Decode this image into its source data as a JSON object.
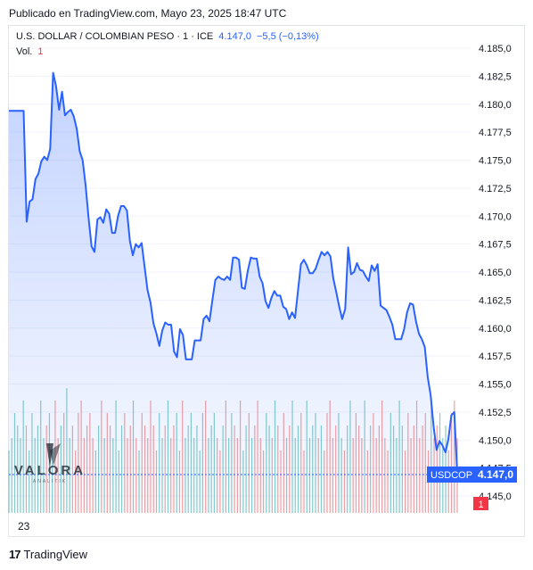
{
  "header": {
    "published": "Publicado en TradingView.com, Mayo 23, 2025 18:47 UTC"
  },
  "legend": {
    "symbol": "U.S. DOLLAR / COLOMBIAN PESO · 1 · ICE",
    "price": "4.147,0",
    "change": "−5,5 (−0,13%)",
    "vol_label": "Vol.",
    "vol_value": "1"
  },
  "price_tag": {
    "ticker": "USDCOP",
    "price": "4.147,0"
  },
  "volume_tag": "1",
  "watermark": {
    "brand": "VALORA",
    "sub": "ANALITIK"
  },
  "footer": {
    "brand": "TradingView"
  },
  "colors": {
    "line": "#2962ff",
    "fill": "#2962ff",
    "vol_up": "#26a69a",
    "vol_down": "#ef5350",
    "tag": "#2962ff",
    "vol_tag": "#f23645"
  },
  "chart_data": {
    "type": "area",
    "xlabel": "",
    "ylabel": "",
    "x_tick_labels": [
      "23"
    ],
    "y_tick_labels": [
      "4.185,0",
      "4.182,5",
      "4.180,0",
      "4.177,5",
      "4.175,0",
      "4.172,5",
      "4.170,0",
      "4.167,5",
      "4.165,0",
      "4.162,5",
      "4.160,0",
      "4.157,5",
      "4.155,0",
      "4.152,5",
      "4.150,0",
      "4.147,5",
      "4.145,0"
    ],
    "ylim": [
      4145.0,
      4185.0
    ],
    "grid": true,
    "series": [
      {
        "values": [
          4179.4,
          4179.4,
          4179.4,
          4179.4,
          4179.4,
          4179.4,
          4169.5,
          4171.3,
          4171.5,
          4173.3,
          4173.8,
          4174.9,
          4175.3,
          4175.0,
          4176.0,
          4182.8,
          4181.6,
          4179.5,
          4181.1,
          4179.0,
          4179.3,
          4179.5,
          4178.9,
          4177.8,
          4175.8,
          4175.0,
          4172.8,
          4169.9,
          4167.3,
          4166.8,
          4169.7,
          4169.9,
          4169.4,
          4170.6,
          4170.2,
          4168.5,
          4168.5,
          4170.0,
          4170.9,
          4170.9,
          4170.5,
          4167.8,
          4166.5,
          4167.5,
          4167.2,
          4167.6,
          4165.5,
          4163.4,
          4162.3,
          4160.4,
          4159.5,
          4158.4,
          4159.8,
          4160.5,
          4160.3,
          4160.3,
          4157.9,
          4157.4,
          4159.9,
          4159.4,
          4157.2,
          4157.2,
          4157.2,
          4158.9,
          4158.9,
          4158.9,
          4160.8,
          4161.1,
          4160.6,
          4162.5,
          4164.3,
          4164.6,
          4164.4,
          4164.3,
          4164.6,
          4164.3,
          4166.3,
          4166.3,
          4166.1,
          4163.6,
          4163.5,
          4165.1,
          4166.3,
          4166.2,
          4166.2,
          4164.6,
          4164.0,
          4162.4,
          4161.8,
          4162.7,
          4163.3,
          4162.9,
          4162.9,
          4161.9,
          4161.7,
          4160.8,
          4161.4,
          4160.9,
          4163.3,
          4165.7,
          4166.1,
          4165.6,
          4164.9,
          4164.9,
          4165.3,
          4166.1,
          4166.8,
          4166.5,
          4166.8,
          4166.4,
          4164.4,
          4163.2,
          4161.9,
          4160.8,
          4161.7,
          4167.2,
          4164.8,
          4165.0,
          4165.8,
          4165.2,
          4165.1,
          4164.6,
          4164.2,
          4165.6,
          4165.1,
          4165.7,
          4162.0,
          4161.8,
          4161.6,
          4161.0,
          4160.3,
          4159.0,
          4159.0,
          4159.0,
          4159.9,
          4161.4,
          4162.2,
          4162.1,
          4160.6,
          4159.5,
          4159.0,
          4158.3,
          4155.6,
          4154.0,
          4151.2,
          4149.1,
          4149.9,
          4149.5,
          4148.9,
          4150.1,
          4152.2,
          4152.5,
          4147.0
        ]
      }
    ],
    "volume": {
      "values": [
        0.5,
        0.6,
        0.8,
        0.7,
        0.6,
        0.9,
        0.7,
        0.5,
        0.8,
        0.6,
        0.7,
        0.9,
        0.6,
        0.7,
        0.8,
        0.5,
        0.9,
        0.6,
        0.7,
        0.8,
        1.0,
        0.6,
        0.7,
        0.5,
        0.8,
        0.9,
        0.6,
        0.7,
        0.8,
        0.6,
        0.5,
        0.7,
        0.9,
        0.6,
        0.8,
        0.7,
        0.6,
        0.9,
        0.5,
        0.7,
        0.8,
        0.6,
        0.7,
        0.9,
        0.6,
        0.5,
        0.8,
        0.7,
        0.6,
        0.9,
        0.7,
        0.5,
        0.8,
        0.6,
        0.7,
        0.9,
        0.6,
        0.7,
        0.8,
        0.5,
        0.9,
        0.6,
        0.7,
        0.8,
        0.6,
        0.7,
        0.5,
        0.8,
        0.9,
        0.6,
        0.7,
        0.8,
        0.6,
        0.5,
        0.7,
        0.9,
        0.6,
        0.8,
        0.7,
        0.6,
        0.9,
        0.5,
        0.7,
        0.8,
        0.6,
        0.7,
        0.9,
        0.6,
        0.5,
        0.8,
        0.7,
        0.6,
        0.9,
        0.7,
        0.5,
        0.8,
        0.6,
        0.7,
        0.9,
        0.6,
        0.7,
        0.8,
        0.5,
        0.9,
        0.6,
        0.7,
        0.8,
        0.6,
        0.7,
        0.5,
        0.8,
        0.9,
        0.6,
        0.7,
        0.8,
        0.6,
        0.5,
        0.7,
        0.9,
        0.6,
        0.8,
        0.7,
        0.6,
        0.9,
        0.5,
        0.7,
        0.8,
        0.6,
        0.7,
        0.9,
        0.6,
        0.5,
        0.8,
        0.7,
        0.6,
        0.9,
        0.7,
        0.5,
        0.8,
        0.6,
        0.7,
        0.9,
        0.6,
        0.7,
        0.8,
        0.5,
        0.9,
        0.6,
        0.7,
        0.8,
        0.6,
        0.7,
        0.5,
        0.8,
        0.9,
        0.6
      ]
    }
  }
}
